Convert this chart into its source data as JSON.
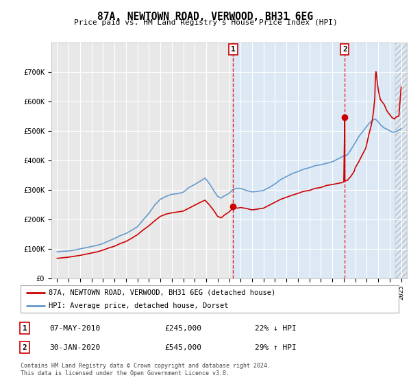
{
  "title": "87A, NEWTOWN ROAD, VERWOOD, BH31 6EG",
  "subtitle": "Price paid vs. HM Land Registry's House Price Index (HPI)",
  "ylim": [
    0,
    800000
  ],
  "yticks": [
    0,
    100000,
    200000,
    300000,
    400000,
    500000,
    600000,
    700000
  ],
  "ytick_labels": [
    "£0",
    "£100K",
    "£200K",
    "£300K",
    "£400K",
    "£500K",
    "£600K",
    "£700K"
  ],
  "background_color": "#ffffff",
  "plot_bg_color": "#dce9f5",
  "plot_bg_left_color": "#e8e8e8",
  "grid_color": "#ffffff",
  "sale1_date": "07-MAY-2010",
  "sale1_price": 245000,
  "sale1_pct": "22%",
  "sale1_dir": "↓",
  "sale2_date": "30-JAN-2020",
  "sale2_price": 545000,
  "sale2_pct": "29%",
  "sale2_dir": "↑",
  "red_line_color": "#cc0000",
  "blue_line_color": "#6699cc",
  "vline_color": "#cc0000",
  "legend_label_red": "87A, NEWTOWN ROAD, VERWOOD, BH31 6EG (detached house)",
  "legend_label_blue": "HPI: Average price, detached house, Dorset",
  "footnote": "Contains HM Land Registry data © Crown copyright and database right 2024.\nThis data is licensed under the Open Government Licence v3.0.",
  "sale1_x": 2010.35,
  "sale2_x": 2020.08,
  "xlim_left": 1994.5,
  "xlim_right": 2025.5
}
